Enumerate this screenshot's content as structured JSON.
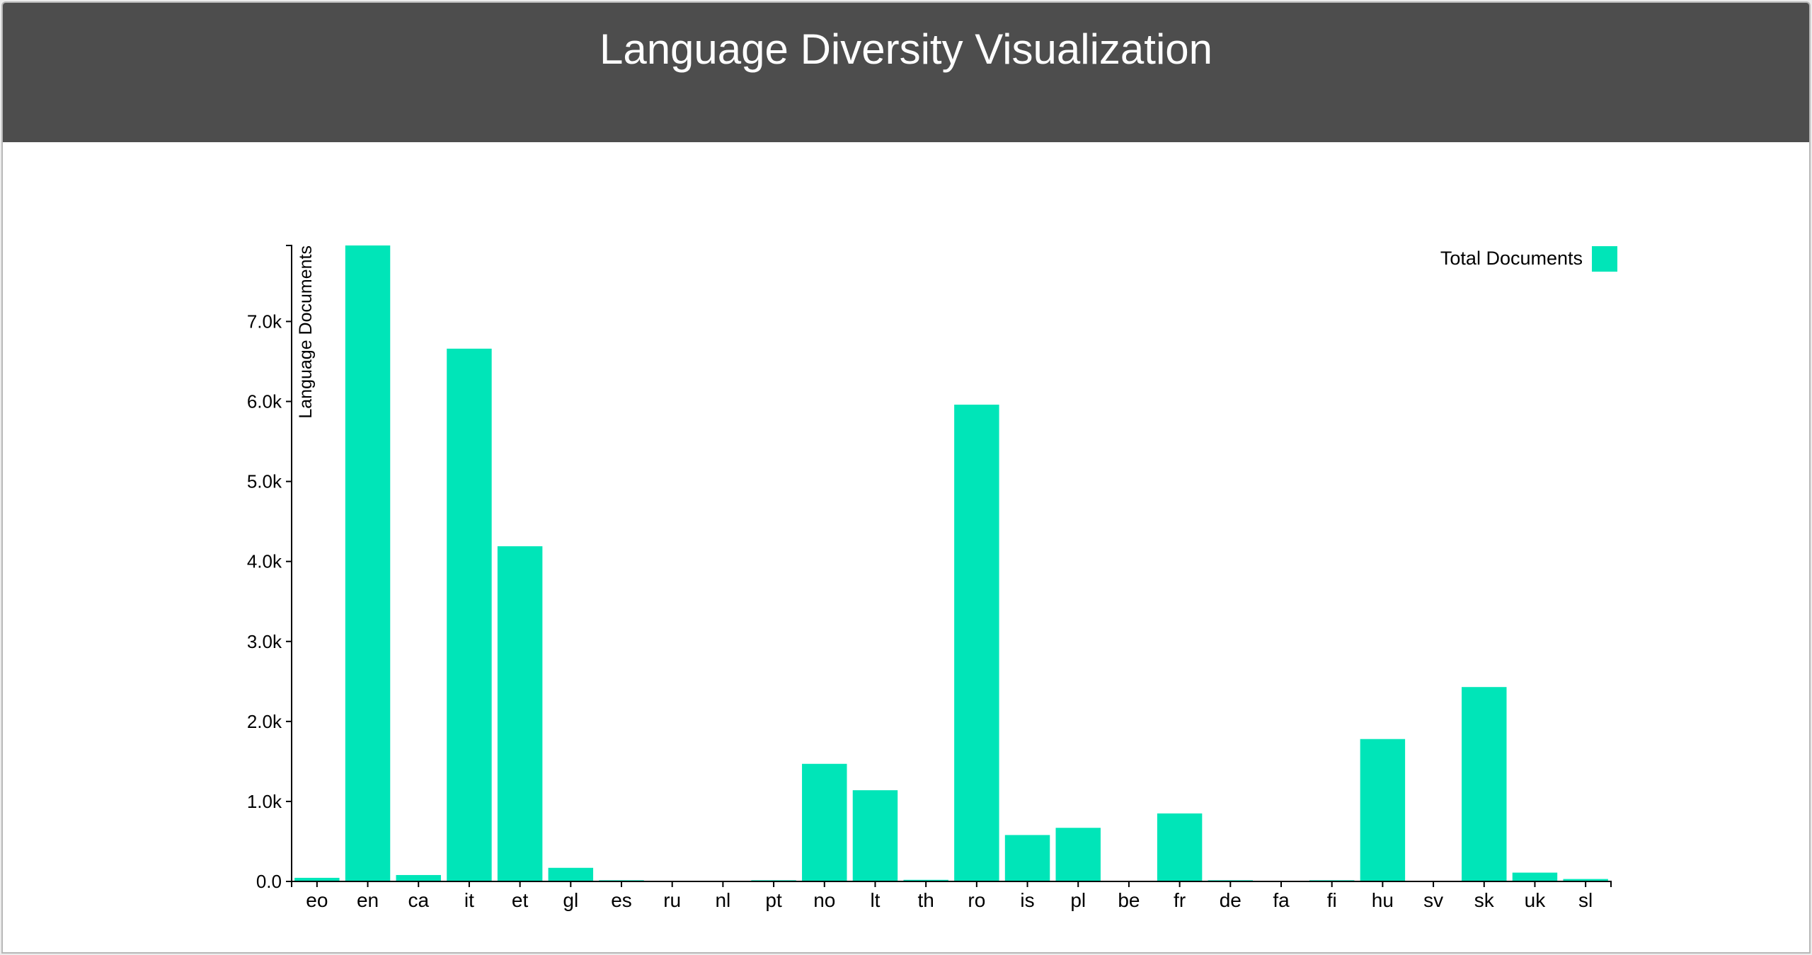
{
  "header": {
    "title": "Language Diversity Visualization"
  },
  "colors": {
    "header_bg": "#4d4d4d",
    "bar": "#00e5b8",
    "background": "#ffffff"
  },
  "chart_data": {
    "type": "bar",
    "title": "Language Diversity Visualization",
    "xlabel": "",
    "ylabel": "Language Documents",
    "categories": [
      "eo",
      "en",
      "ca",
      "it",
      "et",
      "gl",
      "es",
      "ru",
      "nl",
      "pt",
      "no",
      "lt",
      "th",
      "ro",
      "is",
      "pl",
      "be",
      "fr",
      "de",
      "fa",
      "fi",
      "hu",
      "sv",
      "sk",
      "uk",
      "sl"
    ],
    "series": [
      {
        "name": "Total Documents",
        "values": [
          45,
          7950,
          80,
          6660,
          4190,
          170,
          15,
          5,
          5,
          15,
          1470,
          1140,
          20,
          5960,
          580,
          670,
          5,
          850,
          15,
          5,
          15,
          1780,
          5,
          2430,
          110,
          30
        ]
      }
    ],
    "ylim": [
      0,
      7950
    ],
    "yticks": [
      0,
      1000,
      2000,
      3000,
      4000,
      5000,
      6000,
      7000
    ],
    "ytick_labels": [
      "0.0",
      "1.0k",
      "2.0k",
      "3.0k",
      "4.0k",
      "5.0k",
      "6.0k",
      "7.0k"
    ],
    "grid": false,
    "legend": "top-right"
  }
}
